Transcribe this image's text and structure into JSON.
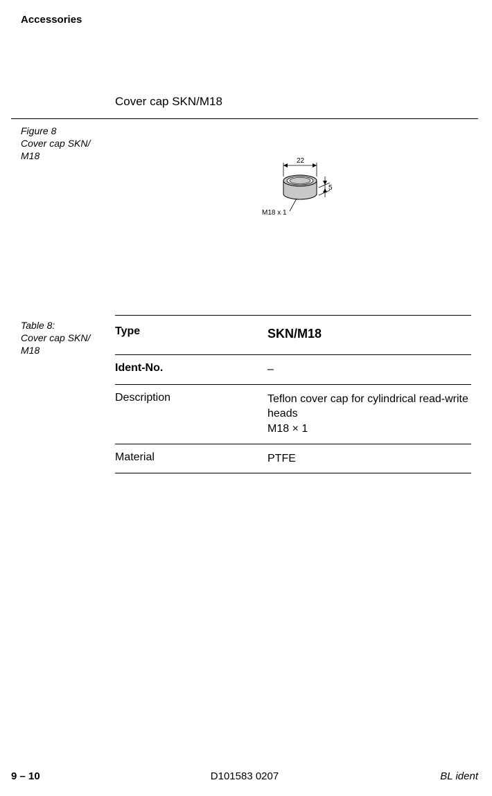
{
  "header": {
    "title": "Accessories"
  },
  "section": {
    "title": "Cover cap SKN/M18"
  },
  "figure": {
    "caption_line1": "Figure 8",
    "caption_line2": "Cover cap SKN/",
    "caption_line3": "M18",
    "diagram": {
      "dim_top": "22",
      "dim_right": "5",
      "thread_label": "M18 x 1",
      "body_fill": "#c8c8c8",
      "stroke": "#000000"
    }
  },
  "table": {
    "caption_line1": "Table 8:",
    "caption_line2": "Cover cap SKN/",
    "caption_line3": "M18",
    "rows": [
      {
        "label": "Type",
        "value": "SKN/M18",
        "bold": true
      },
      {
        "label": "Ident-No.",
        "value": "–",
        "bold_label": true
      },
      {
        "label": "Description",
        "value": "Teflon cover cap for cylindrical read-write heads\nM18 × 1"
      },
      {
        "label": "Material",
        "value": "PTFE"
      }
    ]
  },
  "footer": {
    "left": "9 – 10",
    "center": "D101583 0207",
    "right": "BL ident"
  }
}
